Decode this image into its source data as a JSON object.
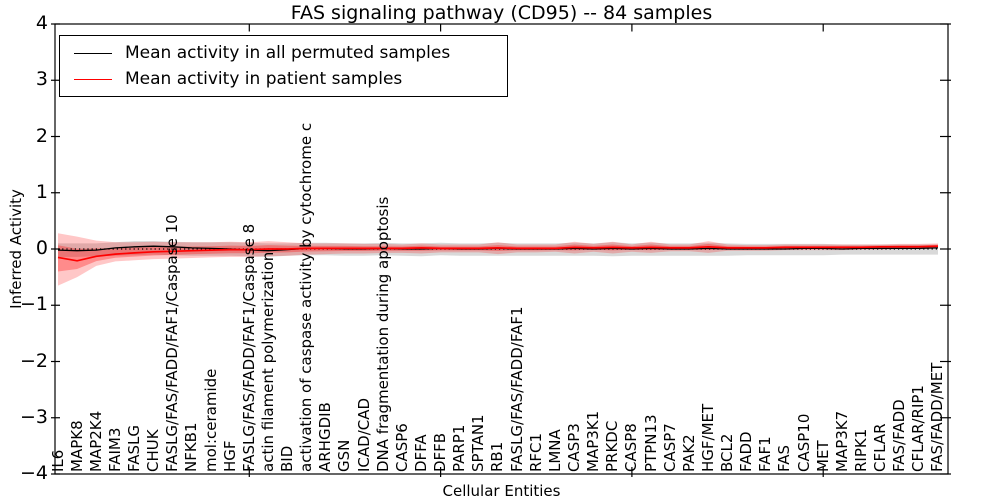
{
  "figure": {
    "background": "#ffffff"
  },
  "chart_data": {
    "type": "line",
    "title": "FAS signaling pathway (CD95) -- 84 samples",
    "xlabel": "Cellular Entities",
    "ylabel": "Inferred Activity",
    "ylim": [
      -4,
      4
    ],
    "yticks": [
      4,
      3,
      2,
      1,
      0,
      -1,
      -2,
      -3,
      -4
    ],
    "grid": false,
    "zero_line": {
      "style": "dotted",
      "color": "#000000",
      "y": 0
    },
    "legend": {
      "position": "upper left",
      "entries": [
        {
          "label": "Mean activity in all permuted samples",
          "color": "#000000"
        },
        {
          "label": "Mean activity in patient samples",
          "color": "#ff0000"
        }
      ]
    },
    "categories": [
      "IL6",
      "MAPK8",
      "MAP2K4",
      "FAIM3",
      "FASLG",
      "CHUK",
      "FASLG/FAS/FADD/FAF1/Caspase 10",
      "NFKB1",
      "mol:ceramide",
      "HGF",
      "FASLG/FAS/FADD/FAF1/Caspase 8",
      "actin filament polymerization",
      "BID",
      "activation of caspase activity by cytochrome c",
      "ARHGDIB",
      "GSN",
      "ICAD/CAD",
      "DNA fragmentation during apoptosis",
      "CASP6",
      "DFFA",
      "DFFB",
      "PARP1",
      "SPTAN1",
      "RB1",
      "FASLG/FAS/FADD/FAF1",
      "RFC1",
      "LMNA",
      "CASP3",
      "MAP3K1",
      "PRKDC",
      "CASP8",
      "PTPN13",
      "CASP7",
      "PAK2",
      "HGF/MET",
      "BCL2",
      "FADD",
      "FAF1",
      "FAS",
      "CASP10",
      "MET",
      "MAP3K7",
      "RIPK1",
      "CFLAR",
      "FAS/FADD",
      "CFLAR/RIP1",
      "FAS/FADD/MET"
    ],
    "series": [
      {
        "name": "Mean activity in all permuted samples",
        "color": "#000000",
        "band_color": "rgba(120,120,120,0.28)",
        "values": [
          -0.02,
          -0.03,
          -0.02,
          0.02,
          0.04,
          0.05,
          0.04,
          0.02,
          0.01,
          0.0,
          -0.02,
          -0.03,
          -0.01,
          0.01,
          0.01,
          0.0,
          0.0,
          0.01,
          0.0,
          0.0,
          0.01,
          0.0,
          0.0,
          0.01,
          0.0,
          0.0,
          0.0,
          0.01,
          0.0,
          0.01,
          0.0,
          0.01,
          0.0,
          0.0,
          0.01,
          0.0,
          0.0,
          0.0,
          0.0,
          0.01,
          0.01,
          0.0,
          0.01,
          0.01,
          0.01,
          0.01,
          0.02
        ],
        "band_upper": [
          0.1,
          0.1,
          0.1,
          0.12,
          0.14,
          0.14,
          0.13,
          0.12,
          0.12,
          0.12,
          0.11,
          0.1,
          0.1,
          0.11,
          0.11,
          0.1,
          0.1,
          0.11,
          0.1,
          0.1,
          0.11,
          0.1,
          0.1,
          0.11,
          0.1,
          0.1,
          0.1,
          0.11,
          0.1,
          0.12,
          0.1,
          0.11,
          0.1,
          0.1,
          0.11,
          0.1,
          0.09,
          0.09,
          0.09,
          0.09,
          0.09,
          0.08,
          0.08,
          0.08,
          0.08,
          0.08,
          0.08
        ],
        "band_lower": [
          -0.14,
          -0.14,
          -0.13,
          -0.12,
          -0.11,
          -0.1,
          -0.11,
          -0.12,
          -0.12,
          -0.12,
          -0.13,
          -0.14,
          -0.12,
          -0.11,
          -0.11,
          -0.12,
          -0.12,
          -0.11,
          -0.12,
          -0.13,
          -0.11,
          -0.12,
          -0.12,
          -0.12,
          -0.12,
          -0.12,
          -0.12,
          -0.12,
          -0.12,
          -0.13,
          -0.12,
          -0.12,
          -0.12,
          -0.12,
          -0.12,
          -0.12,
          -0.11,
          -0.11,
          -0.11,
          -0.11,
          -0.11,
          -0.1,
          -0.1,
          -0.1,
          -0.1,
          -0.1,
          -0.1
        ]
      },
      {
        "name": "Mean activity in patient samples",
        "color": "#ff0000",
        "band_color": "rgba(255,0,0,0.22)",
        "values": [
          -0.15,
          -0.21,
          -0.13,
          -0.09,
          -0.07,
          -0.05,
          -0.04,
          -0.03,
          -0.02,
          -0.01,
          -0.01,
          0.0,
          0.0,
          0.01,
          0.01,
          0.01,
          0.01,
          0.01,
          0.01,
          0.02,
          0.01,
          0.01,
          0.01,
          0.02,
          0.01,
          0.01,
          0.01,
          0.03,
          0.02,
          0.03,
          0.02,
          0.03,
          0.02,
          0.02,
          0.04,
          0.02,
          0.02,
          0.02,
          0.03,
          0.03,
          0.03,
          0.03,
          0.03,
          0.04,
          0.04,
          0.04,
          0.05
        ],
        "band_upper": [
          0.28,
          0.22,
          0.15,
          0.12,
          0.12,
          0.13,
          0.12,
          0.12,
          0.12,
          0.13,
          0.12,
          0.14,
          0.12,
          0.1,
          0.1,
          0.1,
          0.09,
          0.09,
          0.08,
          0.1,
          0.08,
          0.08,
          0.08,
          0.12,
          0.08,
          0.08,
          0.08,
          0.13,
          0.09,
          0.13,
          0.08,
          0.13,
          0.08,
          0.08,
          0.14,
          0.08,
          0.07,
          0.07,
          0.08,
          0.08,
          0.08,
          0.08,
          0.08,
          0.08,
          0.09,
          0.09,
          0.1
        ],
        "band_lower": [
          -0.65,
          -0.5,
          -0.3,
          -0.22,
          -0.2,
          -0.18,
          -0.17,
          -0.16,
          -0.15,
          -0.14,
          -0.14,
          -0.13,
          -0.12,
          -0.1,
          -0.09,
          -0.08,
          -0.08,
          -0.07,
          -0.07,
          -0.08,
          -0.06,
          -0.06,
          -0.06,
          -0.09,
          -0.06,
          -0.06,
          -0.05,
          -0.08,
          -0.05,
          -0.08,
          -0.05,
          -0.07,
          -0.04,
          -0.04,
          -0.07,
          -0.03,
          -0.03,
          -0.03,
          -0.02,
          -0.02,
          -0.02,
          -0.02,
          -0.01,
          -0.01,
          0.0,
          0.0,
          0.01
        ]
      }
    ]
  }
}
